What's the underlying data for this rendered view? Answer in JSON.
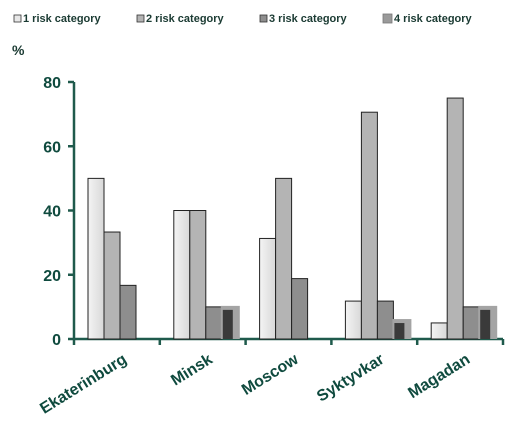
{
  "chart_data": {
    "type": "bar",
    "unit_label": "%",
    "categories": [
      "Ekaterinburg",
      "Minsk",
      "Moscow",
      "Syktyvkar",
      "Magadan"
    ],
    "series": [
      {
        "name": "1 risk category",
        "values": [
          50,
          40,
          31.3,
          11.8,
          5
        ],
        "color": "#e4e4e4"
      },
      {
        "name": "2 risk category",
        "values": [
          33.3,
          40,
          50,
          70.6,
          75
        ],
        "color": "#b4b4b4"
      },
      {
        "name": "3 risk category",
        "values": [
          16.7,
          10,
          18.8,
          11.8,
          10
        ],
        "color": "#8e8e8e"
      },
      {
        "name": "4 risk category",
        "values": [
          0,
          10,
          0,
          5.9,
          10
        ],
        "color": "#3a3a3a"
      }
    ],
    "yticks": [
      0,
      20,
      40,
      60,
      80
    ],
    "ylim": [
      0,
      80
    ],
    "grid": false,
    "legend_position": "top",
    "axis_color": "#1f5a4c"
  }
}
